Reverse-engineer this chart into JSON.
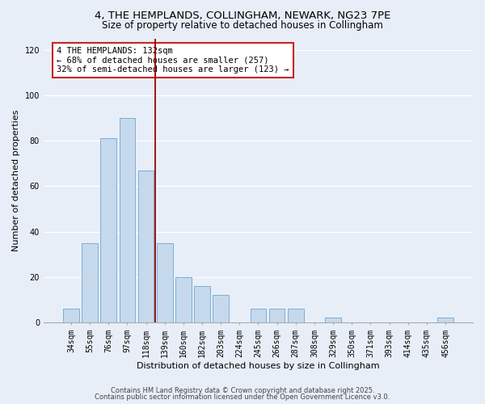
{
  "title1": "4, THE HEMPLANDS, COLLINGHAM, NEWARK, NG23 7PE",
  "title2": "Size of property relative to detached houses in Collingham",
  "xlabel": "Distribution of detached houses by size in Collingham",
  "ylabel": "Number of detached properties",
  "bar_color": "#c6d9ec",
  "bar_edge_color": "#7bafd4",
  "background_color": "#e8eef7",
  "categories": [
    "34sqm",
    "55sqm",
    "76sqm",
    "97sqm",
    "118sqm",
    "139sqm",
    "160sqm",
    "182sqm",
    "203sqm",
    "224sqm",
    "245sqm",
    "266sqm",
    "287sqm",
    "308sqm",
    "329sqm",
    "350sqm",
    "371sqm",
    "393sqm",
    "414sqm",
    "435sqm",
    "456sqm"
  ],
  "values": [
    6,
    35,
    81,
    90,
    67,
    35,
    20,
    16,
    12,
    0,
    6,
    6,
    6,
    0,
    2,
    0,
    0,
    0,
    0,
    0,
    2
  ],
  "vline_x": 4.5,
  "vline_color": "#990000",
  "annotation_line1": "4 THE HEMPLANDS: 132sqm",
  "annotation_line2": "← 68% of detached houses are smaller (257)",
  "annotation_line3": "32% of semi-detached houses are larger (123) →",
  "ylim": [
    0,
    125
  ],
  "yticks": [
    0,
    20,
    40,
    60,
    80,
    100,
    120
  ],
  "footer1": "Contains HM Land Registry data © Crown copyright and database right 2025.",
  "footer2": "Contains public sector information licensed under the Open Government Licence v3.0.",
  "title_fontsize": 9.5,
  "subtitle_fontsize": 8.5,
  "axis_label_fontsize": 8,
  "tick_fontsize": 7,
  "annotation_fontsize": 7.5,
  "footer_fontsize": 6
}
